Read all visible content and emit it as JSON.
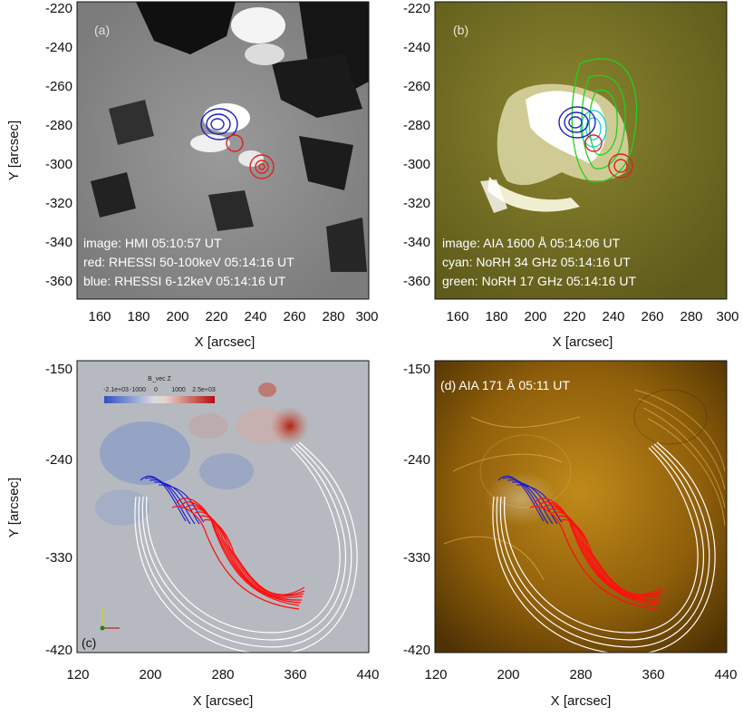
{
  "panels": {
    "a": {
      "label": "(a)",
      "annotations": [
        "image: HMI 05:10:57 UT",
        "red: RHESSI 50-100keV 05:14:16 UT",
        "blue: RHESSI 6-12keV 05:14:16 UT"
      ],
      "xticks": [
        "160",
        "180",
        "200",
        "220",
        "240",
        "260",
        "280",
        "300"
      ],
      "yticks": [
        "-220",
        "-240",
        "-260",
        "-280",
        "-300",
        "-320",
        "-340",
        "-360"
      ],
      "xlabel": "X [arcsec]",
      "ylabel": "Y [arcsec]"
    },
    "b": {
      "label": "(b)",
      "annotations": [
        "image: AIA 1600 Å 05:14:06 UT",
        "cyan: NoRH 34 GHz 05:14:16 UT",
        "green: NoRH 17 GHz 05:14:16 UT"
      ],
      "xticks": [
        "160",
        "180",
        "200",
        "220",
        "240",
        "260",
        "280",
        "300"
      ],
      "yticks": [
        "-220",
        "-240",
        "-260",
        "-280",
        "-300",
        "-320",
        "-340",
        "-360"
      ],
      "xlabel": "X [arcsec]"
    },
    "c": {
      "label": "(c)",
      "colorbar_title": "B_vec Z",
      "colorbar_ticks": [
        "-2.1e+03",
        "-1000",
        "0",
        "1000",
        "2.5e+03"
      ],
      "xticks": [
        "120",
        "200",
        "280",
        "360",
        "440"
      ],
      "yticks": [
        "-150",
        "-240",
        "-330",
        "-420"
      ],
      "xlabel": "X [arcsec]",
      "ylabel": "Y [arcsec]"
    },
    "d": {
      "label": "(d) AIA 171 Å 05:11 UT",
      "xticks": [
        "120",
        "200",
        "280",
        "360",
        "440"
      ],
      "yticks": [
        "-150",
        "-240",
        "-330",
        "-420"
      ],
      "xlabel": "X [arcsec]"
    }
  },
  "colors": {
    "hmi_bg": "#8a8a8a",
    "aia1600_bg": "#6e6a22",
    "hmifield_bg": "#b5b9bc",
    "aia171_bg": "#9a6a0c",
    "red_contour": "#e02020",
    "blue_contour": "#2020c0",
    "cyan_contour": "#10d0d0",
    "green_contour": "#20d020",
    "field_lines_red": "#ff1010",
    "field_lines_blue": "#1a1ad0",
    "field_lines_white": "#ffffff"
  }
}
